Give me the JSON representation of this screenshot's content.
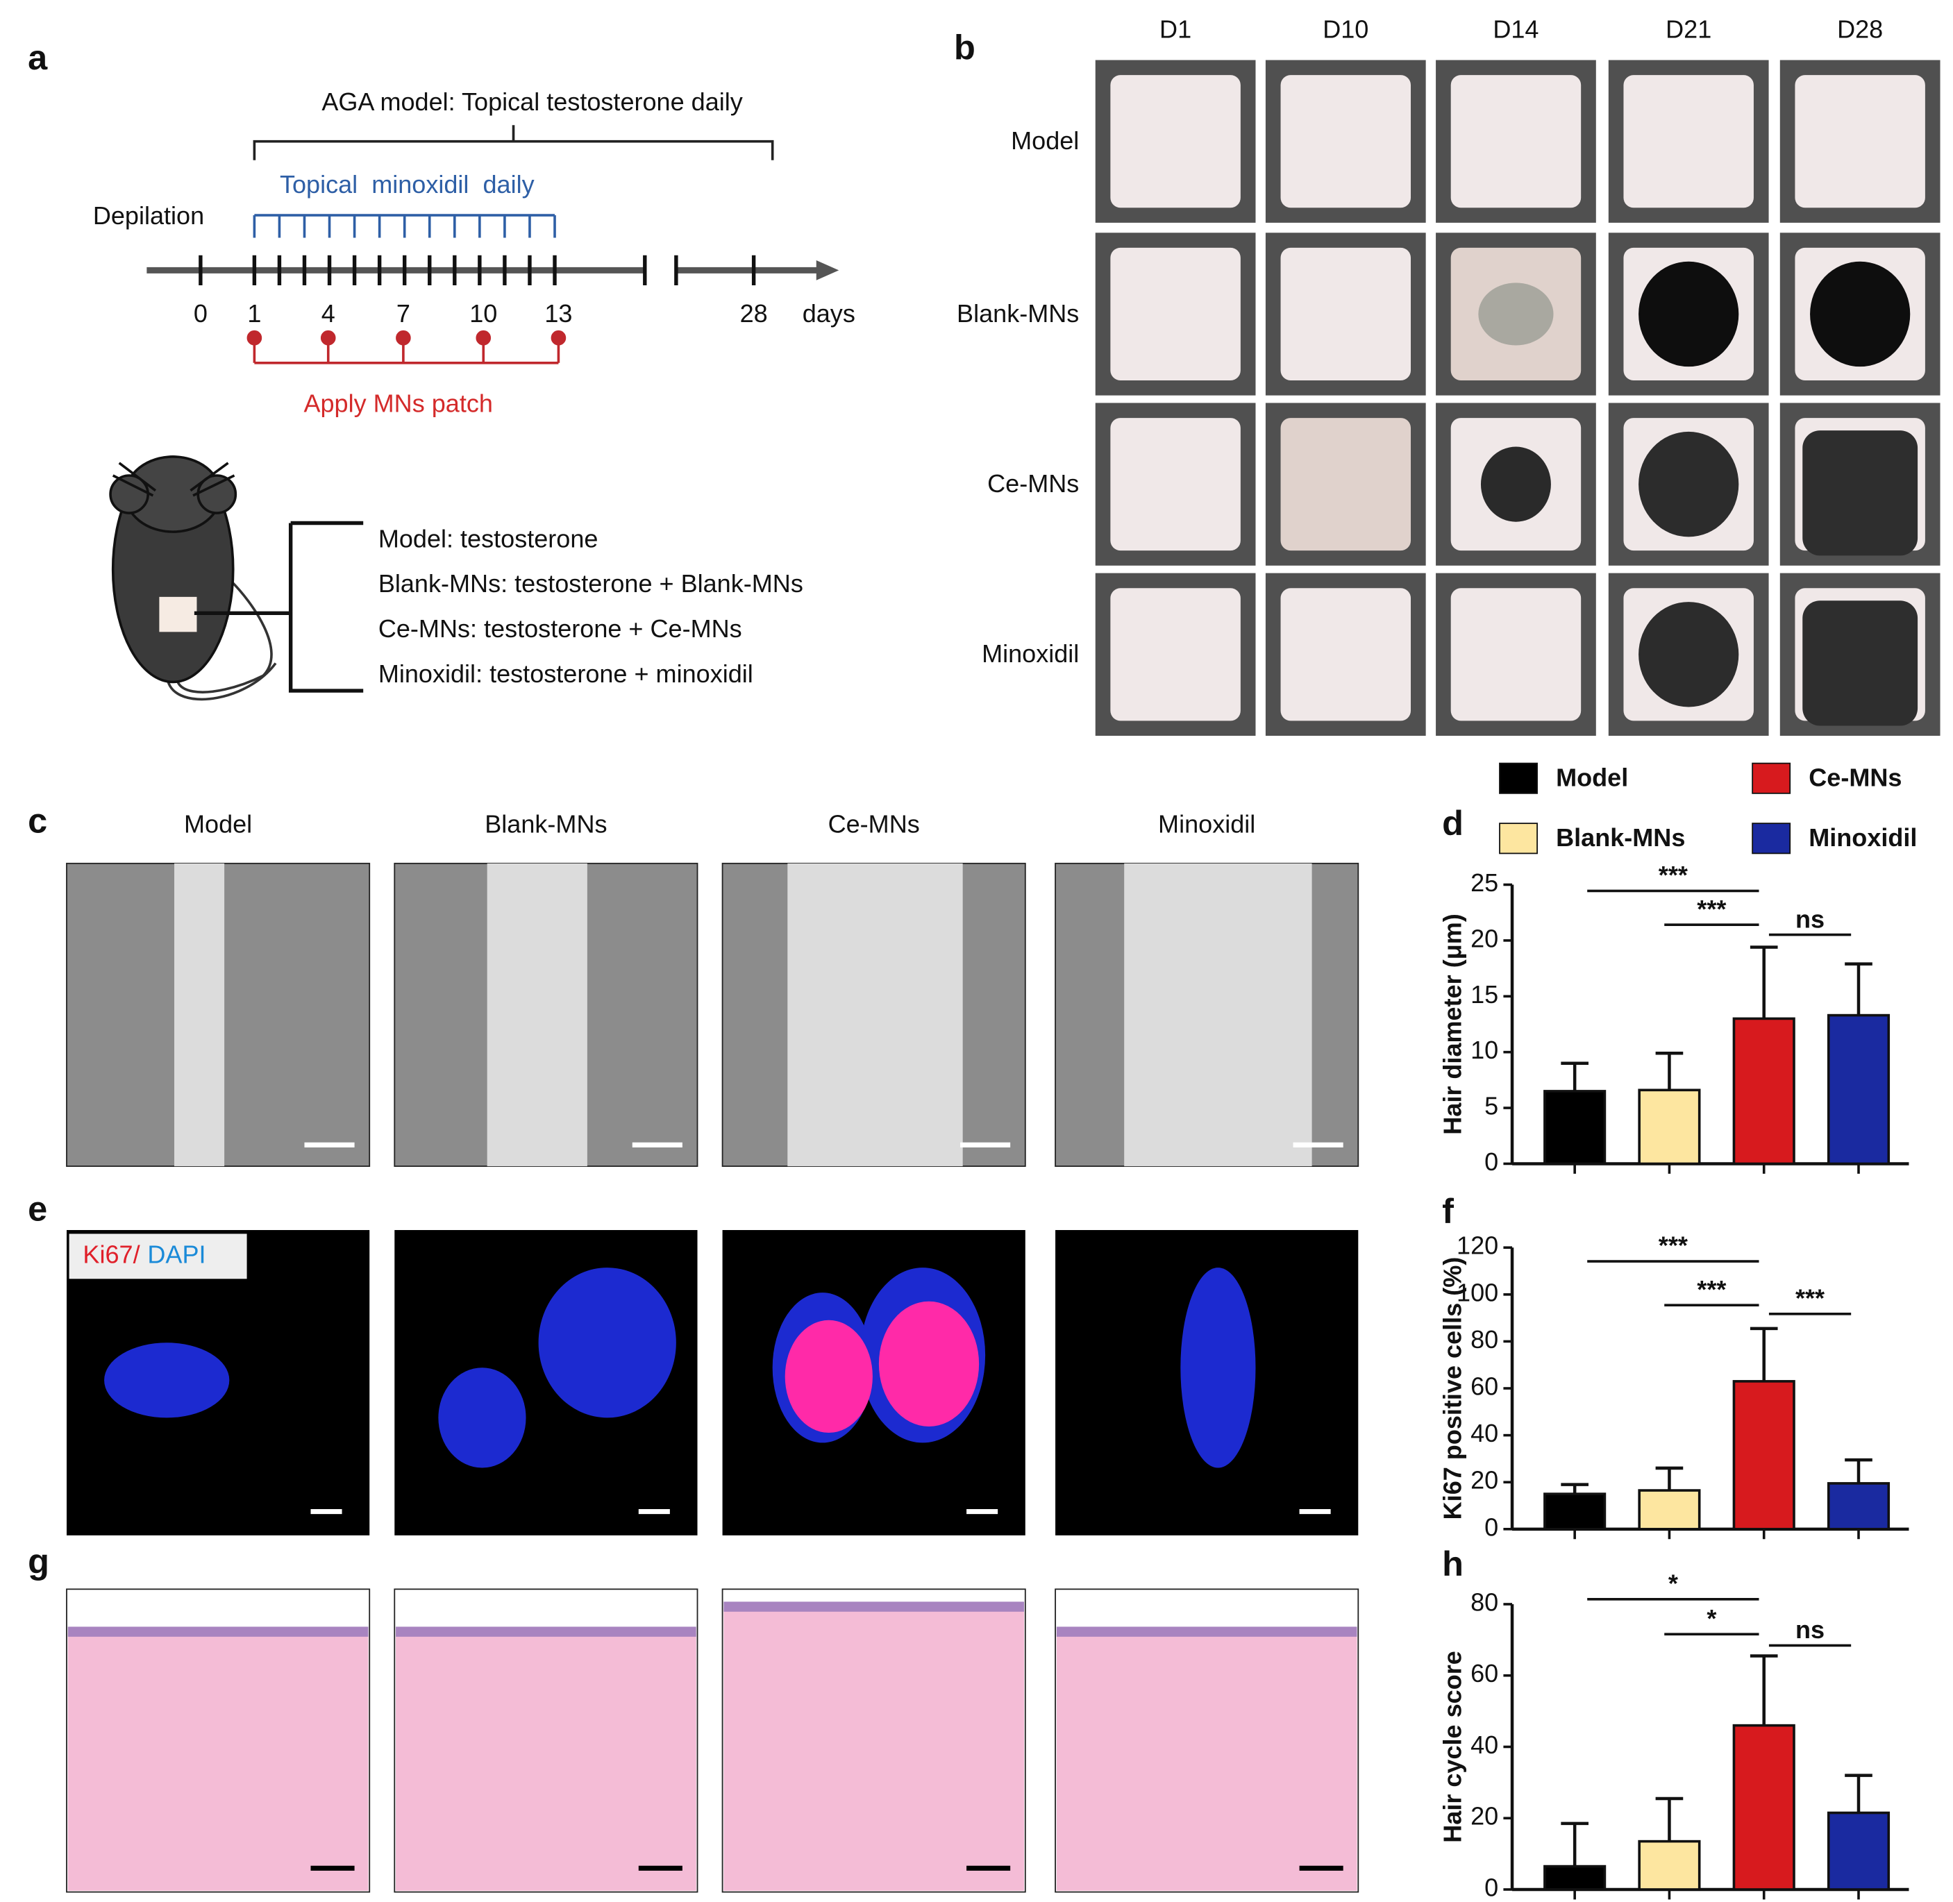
{
  "panels": {
    "a": {
      "label": "a",
      "title": "AGA model: Topical testosterone daily",
      "minoxidil": "Topical  minoxidil  daily",
      "depilation": "Depilation",
      "timeline_labels": [
        "0",
        "1",
        "4",
        "7",
        "10",
        "13",
        "28"
      ],
      "days": "days",
      "patch": "Apply MNs patch",
      "groups": [
        "Model:  testosterone",
        "Blank-MNs: testosterone + Blank-MNs",
        "Ce-MNs: testosterone + Ce-MNs",
        "Minoxidil: testosterone + minoxidil"
      ]
    },
    "b": {
      "label": "b",
      "columns": [
        "D1",
        "D10",
        "D14",
        "D21",
        "D28"
      ],
      "rows": [
        "Model",
        "Blank-MNs",
        "Ce-MNs",
        "Minoxidil"
      ]
    },
    "c": {
      "label": "c",
      "columns": [
        "Model",
        "Blank-MNs",
        "Ce-MNs",
        "Minoxidil"
      ]
    },
    "e": {
      "label": "e",
      "stain_1": "Ki67/",
      "stain_2": "DAPI"
    },
    "g": {
      "label": "g"
    }
  },
  "legend": [
    {
      "name": "Model",
      "color": "#000000"
    },
    {
      "name": "Ce-MNs",
      "color": "#d71a1e"
    },
    {
      "name": "Blank-MNs",
      "color": "#fde6a0"
    },
    {
      "name": "Minoxidil",
      "color": "#1a2aa0"
    }
  ],
  "chart_data": [
    {
      "type": "bar",
      "panel_label": "d",
      "ylabel": "Hair diameter (μm)",
      "categories": [
        null,
        null,
        null,
        null
      ],
      "values": [
        6.5,
        6.6,
        13,
        13.3
      ],
      "errors": [
        2.5,
        3.3,
        6.4,
        4.6
      ],
      "colors": [
        "#000000",
        "#fde6a0",
        "#d71a1e",
        "#1a2aa0"
      ],
      "ylim": [
        0,
        25
      ],
      "yticks": [
        0,
        5,
        10,
        15,
        20,
        25
      ],
      "annotations": [
        "***",
        "***",
        "ns"
      ]
    },
    {
      "type": "bar",
      "panel_label": "f",
      "ylabel": "Ki67 positive cells (%)",
      "categories": [
        null,
        null,
        null,
        null
      ],
      "values": [
        15,
        16.5,
        63,
        19.5
      ],
      "errors": [
        4,
        9.5,
        22.5,
        10
      ],
      "colors": [
        "#000000",
        "#fde6a0",
        "#d71a1e",
        "#1a2aa0"
      ],
      "ylim": [
        0,
        120
      ],
      "yticks": [
        0,
        20,
        40,
        60,
        80,
        100,
        120
      ],
      "annotations": [
        "***",
        "***",
        "***"
      ]
    },
    {
      "type": "bar",
      "panel_label": "h",
      "ylabel": "Hair cycle score",
      "categories": [
        null,
        null,
        null,
        null
      ],
      "values": [
        6.5,
        13.5,
        46,
        21.5
      ],
      "errors": [
        12,
        12,
        19.5,
        10.5
      ],
      "colors": [
        "#000000",
        "#fde6a0",
        "#d71a1e",
        "#1a2aa0"
      ],
      "ylim": [
        0,
        80
      ],
      "yticks": [
        0,
        20,
        40,
        60,
        80
      ],
      "annotations": [
        "*",
        "*",
        "ns"
      ]
    }
  ]
}
